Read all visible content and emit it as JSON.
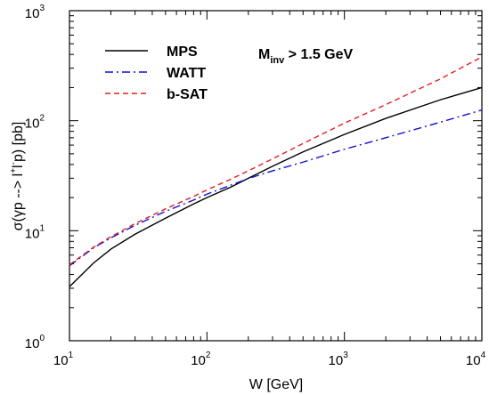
{
  "chart_data": {
    "type": "line",
    "title": "",
    "xlabel": "W [GeV]",
    "ylabel": {
      "prefix": "σ(γp --> l",
      "sup1": "+",
      "mid": "l",
      "sup2": "-",
      "suffix": "p) [pb]"
    },
    "xscale": "log",
    "yscale": "log",
    "xlim": [
      10,
      10000
    ],
    "ylim": [
      1,
      1000
    ],
    "grid": false,
    "legend_position": "top-left",
    "annotation": {
      "main": "M",
      "sub": "inv",
      "rest": " > 1.5 GeV"
    },
    "x_ticks": [
      {
        "base": "10",
        "exp": "1"
      },
      {
        "base": "10",
        "exp": "2"
      },
      {
        "base": "10",
        "exp": "3"
      },
      {
        "base": "10",
        "exp": "4"
      }
    ],
    "y_ticks": [
      {
        "base": "10",
        "exp": "0"
      },
      {
        "base": "10",
        "exp": "1"
      },
      {
        "base": "10",
        "exp": "2"
      },
      {
        "base": "10",
        "exp": "3"
      }
    ],
    "series": [
      {
        "name": "MPS",
        "color": "#000000",
        "dash": "solid",
        "points": [
          [
            10,
            3.1
          ],
          [
            15,
            5.1
          ],
          [
            20,
            6.8
          ],
          [
            30,
            9.3
          ],
          [
            50,
            13.0
          ],
          [
            80,
            17.5
          ],
          [
            100,
            20.0
          ],
          [
            150,
            25.0
          ],
          [
            200,
            30.0
          ],
          [
            300,
            38.5
          ],
          [
            500,
            52.0
          ],
          [
            1000,
            75.0
          ],
          [
            2000,
            105.0
          ],
          [
            5000,
            155.0
          ],
          [
            10000,
            200.0
          ]
        ]
      },
      {
        "name": "WATT",
        "color": "#1010d0",
        "dash": "dashdot",
        "points": [
          [
            10,
            4.8
          ],
          [
            15,
            7.0
          ],
          [
            20,
            8.6
          ],
          [
            30,
            11.2
          ],
          [
            50,
            15.0
          ],
          [
            80,
            19.0
          ],
          [
            100,
            21.5
          ],
          [
            150,
            26.0
          ],
          [
            200,
            29.8
          ],
          [
            300,
            35.0
          ],
          [
            500,
            42.0
          ],
          [
            1000,
            55.0
          ],
          [
            2000,
            70.0
          ],
          [
            5000,
            97.0
          ],
          [
            10000,
            125.0
          ]
        ]
      },
      {
        "name": "b-SAT",
        "color": "#e02020",
        "dash": "dashed",
        "points": [
          [
            10,
            4.9
          ],
          [
            15,
            7.1
          ],
          [
            20,
            8.8
          ],
          [
            30,
            11.6
          ],
          [
            50,
            15.8
          ],
          [
            80,
            20.5
          ],
          [
            100,
            23.5
          ],
          [
            150,
            29.5
          ],
          [
            200,
            35.0
          ],
          [
            300,
            45.0
          ],
          [
            500,
            62.0
          ],
          [
            1000,
            95.0
          ],
          [
            2000,
            140.0
          ],
          [
            5000,
            240.0
          ],
          [
            10000,
            380.0
          ]
        ]
      }
    ]
  }
}
